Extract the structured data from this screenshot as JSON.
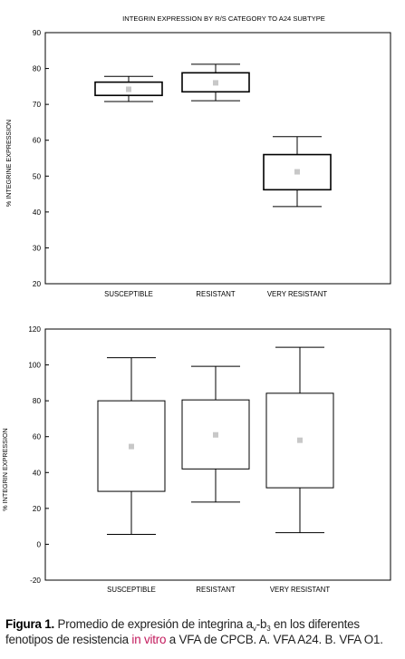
{
  "chart_data": [
    {
      "type": "box",
      "title": "INTEGRIN EXPRESSION BY R/S CATEGORY TO A24 SUBTYPE",
      "ylabel": "% INTEGRINE EXPRESSION",
      "xlabel": "",
      "ylim": [
        20,
        90
      ],
      "yticks": [
        "90",
        "80",
        "70",
        "60",
        "50",
        "40",
        "30",
        "20"
      ],
      "ytick_values": [
        90,
        80,
        70,
        60,
        50,
        40,
        30,
        20
      ],
      "categories": [
        "SUSCEPTIBLE",
        "RESISTANT",
        "VERY RESISTANT"
      ],
      "boxes": [
        {
          "whisker_low": 70.8,
          "q1": 72.5,
          "median": 74.2,
          "q3": 76.2,
          "whisker_high": 77.8
        },
        {
          "whisker_low": 71.0,
          "q1": 73.5,
          "median": 76.0,
          "q3": 78.8,
          "whisker_high": 81.2
        },
        {
          "whisker_low": 41.5,
          "q1": 46.2,
          "median": 51.2,
          "q3": 56.0,
          "whisker_high": 61.0
        }
      ]
    },
    {
      "type": "box",
      "title": "",
      "ylabel": "% INTEGRIN EXPRESSION",
      "xlabel": "",
      "ylim": [
        -20,
        120
      ],
      "yticks": [
        "120",
        "100",
        "80",
        "60",
        "40",
        "20",
        "0",
        "-20"
      ],
      "ytick_values": [
        120,
        100,
        80,
        60,
        40,
        20,
        0,
        -20
      ],
      "categories": [
        "SUSCEPTIBLE",
        "RESISTANT",
        "VERY RESISTANT"
      ],
      "boxes": [
        {
          "whisker_low": 5.5,
          "q1": 29.5,
          "median": 54.5,
          "q3": 80.0,
          "whisker_high": 104.0
        },
        {
          "whisker_low": 23.5,
          "q1": 42.0,
          "median": 61.0,
          "q3": 80.5,
          "whisker_high": 99.2
        },
        {
          "whisker_low": 6.5,
          "q1": 31.5,
          "median": 58.0,
          "q3": 84.2,
          "whisker_high": 109.8
        }
      ]
    }
  ],
  "caption": {
    "label": "Figura 1.",
    "text_1": " Promedio de expresión de integrina a",
    "sub_1": "v",
    "text_2": "-b",
    "sub_2": "3",
    "text_3": " en los diferentes fenotipos de resistencia ",
    "accent": "in vitro",
    "text_4": " a VFA de CPCB. A. VFA A24. B. VFA O1."
  },
  "colors": {
    "accent": "#c2185b",
    "box_fill": "#ffffff",
    "marker": "#c8c8c8",
    "axis": "#000000"
  }
}
